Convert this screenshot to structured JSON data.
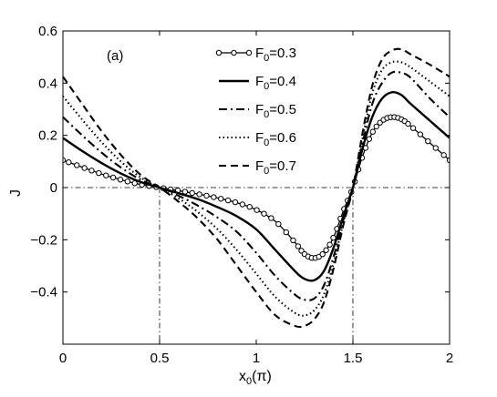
{
  "chart_data": {
    "type": "line",
    "panel_label": "(a)",
    "xlabel": "x",
    "xlabel_sub": "0",
    "xlabel_suffix": "(π)",
    "ylabel": "J",
    "xlim": [
      0,
      2
    ],
    "ylim": [
      -0.6,
      0.6
    ],
    "xticks": [
      0,
      0.5,
      1,
      1.5,
      2
    ],
    "xtick_labels": [
      "0",
      "0.5",
      "1",
      "1.5",
      "2"
    ],
    "yticks": [
      -0.4,
      -0.2,
      0,
      0.2,
      0.4,
      0.6
    ],
    "ytick_labels": [
      "−0.4",
      "−0.2",
      "0",
      "0.2",
      "0.4",
      "0.6"
    ],
    "grid": false,
    "legend_position": "top-center",
    "reference_lines": {
      "y": [
        0
      ],
      "x": [
        0.5,
        1.5
      ]
    },
    "x": [
      0,
      0.1,
      0.2,
      0.3,
      0.4,
      0.5,
      0.6,
      0.7,
      0.8,
      0.9,
      1.0,
      1.1,
      1.2,
      1.25,
      1.3,
      1.35,
      1.4,
      1.45,
      1.5,
      1.55,
      1.6,
      1.65,
      1.7,
      1.75,
      1.8,
      1.9,
      2.0
    ],
    "series": [
      {
        "name": "F0=0.3",
        "legend_main": "F",
        "legend_sub": "0",
        "legend_value": "=0.3",
        "style": "circle",
        "values": [
          0.105,
          0.078,
          0.052,
          0.03,
          0.012,
          0.0,
          -0.012,
          -0.025,
          -0.04,
          -0.058,
          -0.085,
          -0.13,
          -0.21,
          -0.255,
          -0.27,
          -0.25,
          -0.19,
          -0.09,
          0.0,
          0.12,
          0.21,
          0.255,
          0.27,
          0.262,
          0.235,
          0.17,
          0.105
        ]
      },
      {
        "name": "F0=0.4",
        "legend_main": "F",
        "legend_sub": "0",
        "legend_value": "=0.4",
        "style": "solid",
        "values": [
          0.19,
          0.14,
          0.094,
          0.054,
          0.022,
          0.0,
          -0.022,
          -0.045,
          -0.075,
          -0.11,
          -0.16,
          -0.24,
          -0.32,
          -0.35,
          -0.355,
          -0.32,
          -0.23,
          -0.11,
          0.0,
          0.15,
          0.27,
          0.34,
          0.365,
          0.355,
          0.32,
          0.255,
          0.19
        ]
      },
      {
        "name": "F0=0.5",
        "legend_main": "F",
        "legend_sub": "0",
        "legend_value": "=0.5",
        "style": "dashdot",
        "values": [
          0.27,
          0.2,
          0.134,
          0.077,
          0.031,
          0.0,
          -0.032,
          -0.07,
          -0.115,
          -0.17,
          -0.25,
          -0.34,
          -0.41,
          -0.43,
          -0.425,
          -0.375,
          -0.265,
          -0.125,
          0.0,
          0.17,
          0.32,
          0.4,
          0.44,
          0.44,
          0.42,
          0.34,
          0.27
        ]
      },
      {
        "name": "F0=0.6",
        "legend_main": "F",
        "legend_sub": "0",
        "legend_value": "=0.6",
        "style": "dotted",
        "values": [
          0.35,
          0.26,
          0.174,
          0.1,
          0.04,
          0.0,
          -0.042,
          -0.095,
          -0.16,
          -0.24,
          -0.33,
          -0.42,
          -0.48,
          -0.49,
          -0.47,
          -0.41,
          -0.29,
          -0.135,
          0.0,
          0.19,
          0.36,
          0.45,
          0.48,
          0.48,
          0.46,
          0.405,
          0.35
        ]
      },
      {
        "name": "F0=0.7",
        "legend_main": "F",
        "legend_sub": "0",
        "legend_value": "=0.7",
        "style": "dashed",
        "values": [
          0.425,
          0.32,
          0.216,
          0.125,
          0.05,
          0.0,
          -0.055,
          -0.12,
          -0.2,
          -0.3,
          -0.4,
          -0.49,
          -0.53,
          -0.53,
          -0.505,
          -0.44,
          -0.31,
          -0.145,
          0.0,
          0.21,
          0.39,
          0.49,
          0.525,
          0.53,
          0.51,
          0.47,
          0.425
        ]
      }
    ]
  }
}
